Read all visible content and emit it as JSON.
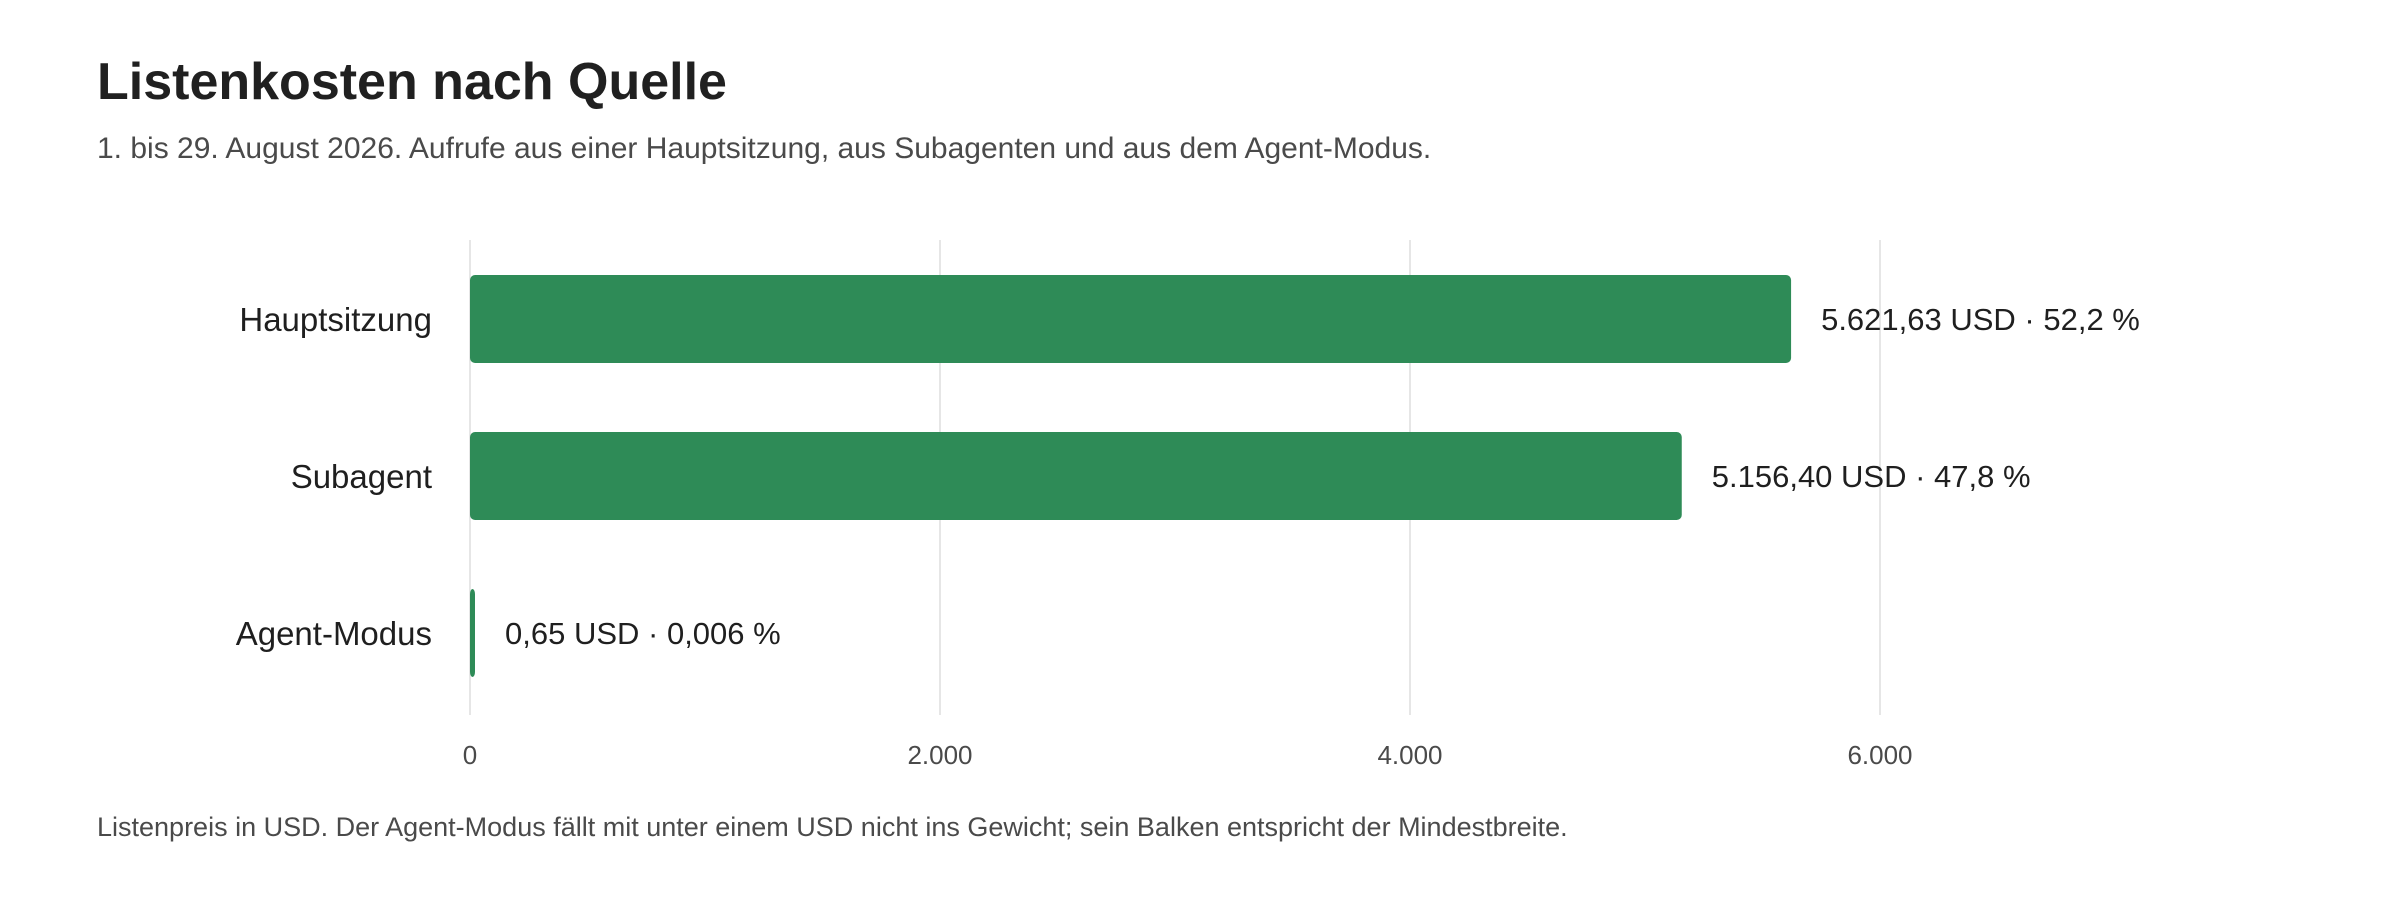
{
  "header": {
    "title": "Listenkosten nach Quelle",
    "subtitle": "1. bis 29. August 2026. Aufrufe aus einer Hauptsitzung, aus Subagenten und aus dem Agent-Modus."
  },
  "footer": {
    "note": "Listenpreis in USD. Der Agent-Modus fällt mit unter einem USD nicht ins Gewicht; sein Balken entspricht der Mindestbreite."
  },
  "chart_data": {
    "type": "bar",
    "orientation": "horizontal",
    "categories": [
      "Hauptsitzung",
      "Subagent",
      "Agent-Modus"
    ],
    "values": [
      5621.63,
      5156.4,
      0.65
    ],
    "value_labels": [
      "5.621,63 USD · 52,2 %",
      "5.156,40 USD · 47,8 %",
      "0,65 USD · 0,006 %"
    ],
    "x_ticks": [
      0,
      2000,
      4000,
      6000
    ],
    "x_tick_labels": [
      "0",
      "2.000",
      "4.000",
      "6.000"
    ],
    "xlim": [
      0,
      6000
    ],
    "grid": true,
    "bar_color": "#2e8b57",
    "grid_color": "#e6e6e6"
  }
}
